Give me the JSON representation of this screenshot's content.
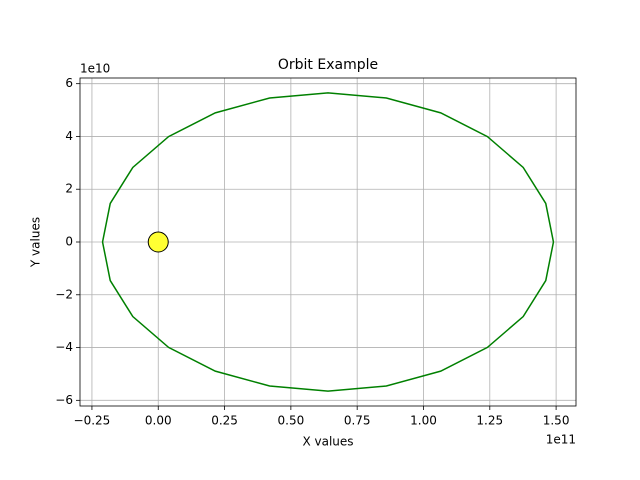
{
  "chart_data": {
    "type": "orbit",
    "title": "Orbit Example",
    "x_label": "X values",
    "y_label": "Y values",
    "x_offset": "1e11",
    "y_offset": "1e10",
    "xlim": [
      -29500000000.0,
      157500000000.0
    ],
    "ylim": [
      -62150000000.0,
      62150000000.0
    ],
    "xticks": [
      {
        "value": -25000000000.0,
        "label": "−0.25"
      },
      {
        "value": 0,
        "label": "0.00"
      },
      {
        "value": 25000000000.0,
        "label": "0.25"
      },
      {
        "value": 50000000000.0,
        "label": "0.50"
      },
      {
        "value": 75000000000.0,
        "label": "0.75"
      },
      {
        "value": 100000000000.0,
        "label": "1.00"
      },
      {
        "value": 125000000000.0,
        "label": "1.25"
      },
      {
        "value": 150000000000.0,
        "label": "1.50"
      }
    ],
    "yticks": [
      {
        "value": -60000000000.0,
        "label": "−6"
      },
      {
        "value": -40000000000.0,
        "label": "−4"
      },
      {
        "value": -20000000000.0,
        "label": "−2"
      },
      0,
      {
        "value": 20000000000.0,
        "label": "2"
      },
      {
        "value": 40000000000.0,
        "label": "4"
      },
      {
        "value": 60000000000.0,
        "label": "6"
      }
    ],
    "grid": true,
    "series": [
      {
        "type": "line",
        "color": "#008000",
        "x": [
          149000000000.0,
          146100000000.0,
          137600000000.0,
          124100000000.0,
          106500000000.0,
          86000000000.0,
          64000000000.0,
          42000000000.0,
          21500000000.0,
          3900000000.0,
          -9600000000.0,
          -18100000000.0,
          -21000000000.0,
          -18100000000.0,
          -9600000000.0,
          3900000000.0,
          21500000000.0,
          42000000000.0,
          64000000000.0,
          86000000000.0,
          106500000000.0,
          124100000000.0,
          137600000000.0,
          146100000000.0,
          149000000000.0
        ],
        "y": [
          0,
          14620000000.0,
          28250000000.0,
          39950000000.0,
          48930000000.0,
          54570000000.0,
          56500000000.0,
          54570000000.0,
          48930000000.0,
          39950000000.0,
          28250000000.0,
          14620000000.0,
          0,
          -14620000000.0,
          -28250000000.0,
          -39950000000.0,
          -48930000000.0,
          -54570000000.0,
          -56500000000.0,
          -54570000000.0,
          -48930000000.0,
          -39950000000.0,
          -28250000000.0,
          -14620000000.0,
          0
        ]
      },
      {
        "type": "scatter",
        "color": "#ffff33",
        "x": [
          0
        ],
        "y": [
          0
        ]
      }
    ]
  }
}
